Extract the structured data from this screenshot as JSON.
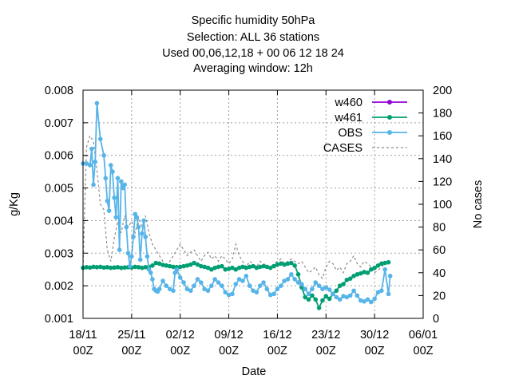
{
  "chart_data": {
    "type": "line",
    "title_lines": [
      "Specific humidity 50hPa",
      "Selection: ALL     36 stations",
      "Used  00,06,12,18  + 00 06 12 18 24",
      "Averaging window: 12h"
    ],
    "xlabel": "Date",
    "ylabel": "g/Kg",
    "y2label": "No cases",
    "xlim": [
      0,
      49
    ],
    "ylim": [
      0.001,
      0.008
    ],
    "y2lim": [
      0,
      200
    ],
    "x_ticks": [
      {
        "x": 0,
        "label1": "18/11",
        "label2": "00Z"
      },
      {
        "x": 7,
        "label1": "25/11",
        "label2": "00Z"
      },
      {
        "x": 14,
        "label1": "02/12",
        "label2": "00Z"
      },
      {
        "x": 21,
        "label1": "09/12",
        "label2": "00Z"
      },
      {
        "x": 28,
        "label1": "16/12",
        "label2": "00Z"
      },
      {
        "x": 35,
        "label1": "23/12",
        "label2": "00Z"
      },
      {
        "x": 42,
        "label1": "30/12",
        "label2": "00Z"
      },
      {
        "x": 49,
        "label1": "06/01",
        "label2": "00Z"
      }
    ],
    "y_ticks": [
      "0.001",
      "0.002",
      "0.003",
      "0.004",
      "0.005",
      "0.006",
      "0.007",
      "0.008"
    ],
    "y2_ticks": [
      "0",
      "20",
      "40",
      "60",
      "80",
      "100",
      "120",
      "140",
      "160",
      "180",
      "200"
    ],
    "grid": true,
    "legend_position": "top-right",
    "series": [
      {
        "name": "w460",
        "color": "#9400d3",
        "axis": "left",
        "style": "line-points",
        "points": []
      },
      {
        "name": "w461",
        "color": "#009e73",
        "axis": "left",
        "style": "line-points",
        "points": [
          [
            0,
            0.00255
          ],
          [
            0.5,
            0.00257
          ],
          [
            1,
            0.00256
          ],
          [
            1.5,
            0.00258
          ],
          [
            2,
            0.00257
          ],
          [
            2.5,
            0.00258
          ],
          [
            3,
            0.00256
          ],
          [
            3.5,
            0.00257
          ],
          [
            4,
            0.00255
          ],
          [
            4.5,
            0.00256
          ],
          [
            5,
            0.00257
          ],
          [
            5.5,
            0.00255
          ],
          [
            6,
            0.00256
          ],
          [
            6.5,
            0.00257
          ],
          [
            7,
            0.00256
          ],
          [
            7.5,
            0.00258
          ],
          [
            8,
            0.00257
          ],
          [
            8.5,
            0.00255
          ],
          [
            9,
            0.00257
          ],
          [
            9.5,
            0.00258
          ],
          [
            10,
            0.00262
          ],
          [
            10.5,
            0.0027
          ],
          [
            11,
            0.00268
          ],
          [
            11.5,
            0.00264
          ],
          [
            12,
            0.00262
          ],
          [
            12.5,
            0.0026
          ],
          [
            13,
            0.00258
          ],
          [
            13.5,
            0.00257
          ],
          [
            14,
            0.00258
          ],
          [
            14.5,
            0.0026
          ],
          [
            15,
            0.00262
          ],
          [
            15.5,
            0.00265
          ],
          [
            16,
            0.0027
          ],
          [
            16.5,
            0.00265
          ],
          [
            17,
            0.0026
          ],
          [
            17.5,
            0.00258
          ],
          [
            18,
            0.00255
          ],
          [
            18.5,
            0.0025
          ],
          [
            19,
            0.00255
          ],
          [
            19.5,
            0.00258
          ],
          [
            20,
            0.0026
          ],
          [
            20.5,
            0.0025
          ],
          [
            21,
            0.00252
          ],
          [
            21.5,
            0.00255
          ],
          [
            22,
            0.0025
          ],
          [
            22.5,
            0.00255
          ],
          [
            23,
            0.00258
          ],
          [
            23.5,
            0.00255
          ],
          [
            24,
            0.00258
          ],
          [
            24.5,
            0.0026
          ],
          [
            25,
            0.00255
          ],
          [
            25.5,
            0.00258
          ],
          [
            26,
            0.0026
          ],
          [
            26.5,
            0.00258
          ],
          [
            27,
            0.00255
          ],
          [
            27.5,
            0.0026
          ],
          [
            28,
            0.00265
          ],
          [
            28.5,
            0.00268
          ],
          [
            29,
            0.00265
          ],
          [
            29.5,
            0.00268
          ],
          [
            30,
            0.0027
          ],
          [
            30.5,
            0.00262
          ],
          [
            31,
            0.00235
          ],
          [
            31.5,
            0.00195
          ],
          [
            32,
            0.00165
          ],
          [
            32.5,
            0.00158
          ],
          [
            33,
            0.0017
          ],
          [
            33.5,
            0.00158
          ],
          [
            34,
            0.00132
          ],
          [
            34.5,
            0.00155
          ],
          [
            35,
            0.00168
          ],
          [
            35.5,
            0.0016
          ],
          [
            36,
            0.00175
          ],
          [
            36.5,
            0.00185
          ],
          [
            37,
            0.002
          ],
          [
            37.5,
            0.00205
          ],
          [
            38,
            0.00218
          ],
          [
            38.5,
            0.00222
          ],
          [
            39,
            0.0023
          ],
          [
            39.5,
            0.00235
          ],
          [
            40,
            0.00238
          ],
          [
            40.5,
            0.00242
          ],
          [
            41,
            0.0024
          ],
          [
            41.5,
            0.0025
          ],
          [
            42,
            0.00255
          ],
          [
            42.5,
            0.00262
          ],
          [
            43,
            0.00268
          ],
          [
            43.5,
            0.0027
          ],
          [
            44,
            0.00272
          ]
        ]
      },
      {
        "name": "OBS",
        "color": "#56b4e9",
        "axis": "left",
        "style": "line-points",
        "points": [
          [
            0,
            0.00575
          ],
          [
            0.5,
            0.00575
          ],
          [
            1,
            0.0057
          ],
          [
            1.25,
            0.0062
          ],
          [
            1.5,
            0.0051
          ],
          [
            1.75,
            0.0058
          ],
          [
            2,
            0.0076
          ],
          [
            2.5,
            0.0065
          ],
          [
            3,
            0.006
          ],
          [
            3.25,
            0.0053
          ],
          [
            3.5,
            0.0046
          ],
          [
            3.75,
            0.0043
          ],
          [
            4,
            0.0057
          ],
          [
            4.25,
            0.0055
          ],
          [
            4.5,
            0.0047
          ],
          [
            4.75,
            0.0041
          ],
          [
            5,
            0.0053
          ],
          [
            5.25,
            0.0031
          ],
          [
            5.5,
            0.0052
          ],
          [
            5.75,
            0.005
          ],
          [
            6,
            0.0051
          ],
          [
            6.25,
            0.0038
          ],
          [
            6.5,
            0.003
          ],
          [
            6.75,
            0.0026
          ],
          [
            7,
            0.0029
          ],
          [
            7.25,
            0.0035
          ],
          [
            7.5,
            0.0042
          ],
          [
            7.75,
            0.0041
          ],
          [
            8,
            0.0038
          ],
          [
            8.25,
            0.0028
          ],
          [
            8.5,
            0.0036
          ],
          [
            8.75,
            0.004
          ],
          [
            9,
            0.0035
          ],
          [
            9.25,
            0.0029
          ],
          [
            9.5,
            0.0025
          ],
          [
            9.75,
            0.0024
          ],
          [
            10,
            0.0022
          ],
          [
            10.25,
            0.0019
          ],
          [
            10.5,
            0.00185
          ],
          [
            10.75,
            0.00182
          ],
          [
            11,
            0.0019
          ],
          [
            11.5,
            0.00215
          ],
          [
            12,
            0.002
          ],
          [
            12.5,
            0.0019
          ],
          [
            13,
            0.00185
          ],
          [
            13.25,
            0.0024
          ],
          [
            13.5,
            0.0025
          ],
          [
            14,
            0.00225
          ],
          [
            14.5,
            0.0021
          ],
          [
            15,
            0.0019
          ],
          [
            15.5,
            0.00185
          ],
          [
            16,
            0.002
          ],
          [
            16.5,
            0.0022
          ],
          [
            17,
            0.0021
          ],
          [
            17.5,
            0.0019
          ],
          [
            18,
            0.00185
          ],
          [
            18.5,
            0.002
          ],
          [
            19,
            0.0022
          ],
          [
            19.5,
            0.0021
          ],
          [
            20,
            0.002
          ],
          [
            20.5,
            0.0018
          ],
          [
            21,
            0.00172
          ],
          [
            21.5,
            0.00175
          ],
          [
            22,
            0.00205
          ],
          [
            22.5,
            0.0022
          ],
          [
            23,
            0.00215
          ],
          [
            23.5,
            0.0023
          ],
          [
            24,
            0.002
          ],
          [
            24.5,
            0.00185
          ],
          [
            25,
            0.0018
          ],
          [
            25.5,
            0.002
          ],
          [
            26,
            0.0021
          ],
          [
            26.5,
            0.0019
          ],
          [
            27,
            0.00172
          ],
          [
            27.5,
            0.00175
          ],
          [
            28,
            0.0019
          ],
          [
            28.5,
            0.002
          ],
          [
            29,
            0.00215
          ],
          [
            29.5,
            0.0022
          ],
          [
            30,
            0.00235
          ],
          [
            30.5,
            0.0022
          ],
          [
            31,
            0.0021
          ],
          [
            31.5,
            0.00205
          ],
          [
            32,
            0.0019
          ],
          [
            32.5,
            0.00175
          ],
          [
            33,
            0.0019
          ],
          [
            33.5,
            0.0021
          ],
          [
            34,
            0.002
          ],
          [
            34.5,
            0.0019
          ],
          [
            35,
            0.00195
          ],
          [
            35.5,
            0.00188
          ],
          [
            36,
            0.00175
          ],
          [
            36.5,
            0.00165
          ],
          [
            37,
            0.00158
          ],
          [
            37.5,
            0.00168
          ],
          [
            38,
            0.00165
          ],
          [
            38.5,
            0.0017
          ],
          [
            39,
            0.00185
          ],
          [
            39.5,
            0.0017
          ],
          [
            40,
            0.00155
          ],
          [
            40.5,
            0.00152
          ],
          [
            41,
            0.00158
          ],
          [
            41.5,
            0.0015
          ],
          [
            42,
            0.0016
          ],
          [
            42.5,
            0.0018
          ],
          [
            43,
            0.00185
          ],
          [
            43.5,
            0.0025
          ],
          [
            44,
            0.00175
          ],
          [
            44.25,
            0.0023
          ]
        ]
      },
      {
        "name": "CASES",
        "color": "#8c8c8c",
        "axis": "right",
        "style": "dashed",
        "points": [
          [
            0,
            45
          ],
          [
            0.5,
            150
          ],
          [
            1,
            160
          ],
          [
            1.5,
            155
          ],
          [
            2,
            130
          ],
          [
            2.5,
            100
          ],
          [
            3,
            95
          ],
          [
            3.5,
            60
          ],
          [
            4,
            50
          ],
          [
            4.5,
            70
          ],
          [
            5,
            85
          ],
          [
            5.5,
            75
          ],
          [
            6,
            90
          ],
          [
            6.5,
            80
          ],
          [
            7,
            85
          ],
          [
            7.5,
            75
          ],
          [
            8,
            88
          ],
          [
            8.5,
            80
          ],
          [
            9,
            90
          ],
          [
            9.5,
            75
          ],
          [
            10,
            65
          ],
          [
            10.5,
            60
          ],
          [
            11,
            55
          ],
          [
            11.5,
            50
          ],
          [
            12,
            45
          ],
          [
            12.5,
            50
          ],
          [
            13,
            55
          ],
          [
            13.5,
            60
          ],
          [
            14,
            65
          ],
          [
            14.5,
            60
          ],
          [
            15,
            55
          ],
          [
            15.5,
            58
          ],
          [
            16,
            60
          ],
          [
            16.5,
            55
          ],
          [
            17,
            50
          ],
          [
            17.5,
            55
          ],
          [
            18,
            58
          ],
          [
            18.5,
            52
          ],
          [
            19,
            55
          ],
          [
            19.5,
            50
          ],
          [
            20,
            55
          ],
          [
            20.5,
            52
          ],
          [
            21,
            48
          ],
          [
            21.5,
            52
          ],
          [
            22,
            65
          ],
          [
            22.5,
            55
          ],
          [
            23,
            50
          ],
          [
            23.5,
            45
          ],
          [
            24,
            50
          ],
          [
            24.5,
            48
          ],
          [
            25,
            45
          ],
          [
            25.5,
            50
          ],
          [
            26,
            48
          ],
          [
            26.5,
            46
          ],
          [
            27,
            45
          ],
          [
            27.5,
            48
          ],
          [
            28,
            50
          ],
          [
            28.5,
            52
          ],
          [
            29,
            48
          ],
          [
            29.5,
            50
          ],
          [
            30,
            52
          ],
          [
            30.5,
            50
          ],
          [
            31,
            48
          ],
          [
            31.5,
            50
          ],
          [
            32,
            45
          ],
          [
            32.5,
            40
          ],
          [
            33,
            42
          ],
          [
            33.5,
            45
          ],
          [
            34,
            38
          ],
          [
            34.5,
            35
          ],
          [
            35,
            45
          ],
          [
            35.5,
            50
          ],
          [
            36,
            48
          ],
          [
            36.5,
            42
          ],
          [
            37,
            45
          ],
          [
            37.5,
            40
          ],
          [
            38,
            48
          ],
          [
            38.5,
            50
          ],
          [
            39,
            55
          ],
          [
            39.5,
            48
          ],
          [
            40,
            45
          ],
          [
            40.5,
            50
          ],
          [
            41,
            48
          ],
          [
            41.5,
            45
          ],
          [
            42,
            40
          ],
          [
            42.5,
            42
          ],
          [
            43,
            45
          ],
          [
            43.5,
            48
          ],
          [
            44,
            50
          ]
        ]
      }
    ]
  }
}
